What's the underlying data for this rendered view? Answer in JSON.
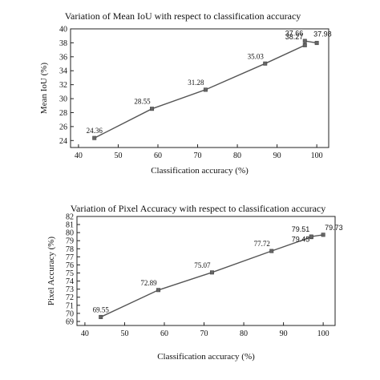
{
  "chart_data": [
    {
      "type": "line",
      "title": "Variation of Mean IoU with respect to classification accuracy",
      "xlabel": "Classification accuracy (%)",
      "ylabel": "Mean IoU (%)",
      "xlim": [
        38,
        103
      ],
      "ylim": [
        23,
        40
      ],
      "xticks": [
        40,
        50,
        60,
        70,
        80,
        90,
        100
      ],
      "yticks": [
        24,
        26,
        28,
        30,
        32,
        34,
        36,
        38,
        40
      ],
      "grid": false,
      "x": [
        44,
        58.5,
        72,
        87,
        97,
        97,
        100
      ],
      "y": [
        24.36,
        28.55,
        31.28,
        35.03,
        37.66,
        38.27,
        37.98
      ],
      "labels": [
        "24.36",
        "28.55",
        "31.28",
        "35.03",
        "37.66",
        "38.27",
        "37.98"
      ]
    },
    {
      "type": "line",
      "title": "Variation of Pixel Accuracy with respect to classification accuracy",
      "xlabel": "Classification accuracy (%)",
      "ylabel": "Pixel Accuracy (%)",
      "xlim": [
        38,
        103
      ],
      "ylim": [
        68.5,
        82
      ],
      "xticks": [
        40,
        50,
        60,
        70,
        80,
        90,
        100
      ],
      "yticks": [
        69,
        70,
        71,
        72,
        73,
        74,
        75,
        76,
        77,
        78,
        79,
        80,
        81,
        82
      ],
      "grid": false,
      "x": [
        44,
        58.5,
        72,
        87,
        97,
        97,
        100
      ],
      "y": [
        69.55,
        72.89,
        75.07,
        77.72,
        79.45,
        79.51,
        79.73
      ],
      "labels": [
        "69.55",
        "72.89",
        "75.07",
        "77.72",
        "79.45",
        "79.51",
        "79.73"
      ]
    }
  ]
}
